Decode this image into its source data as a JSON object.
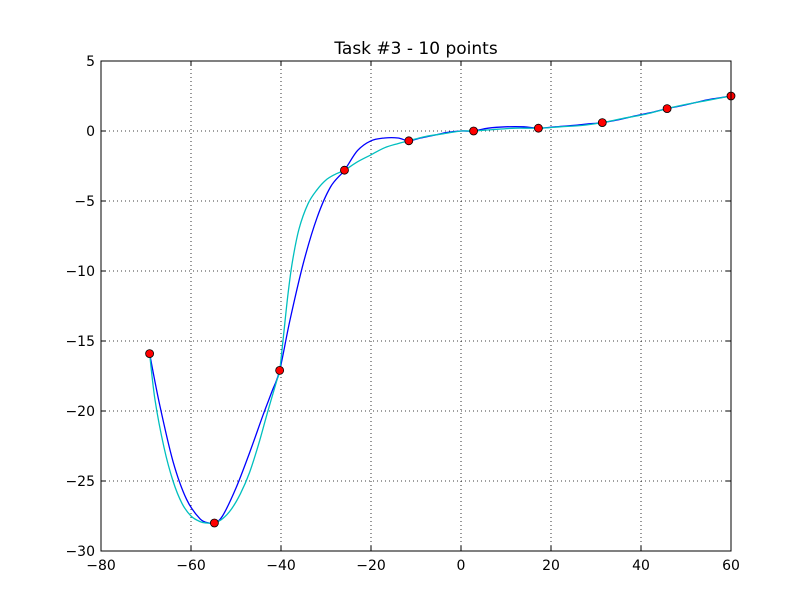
{
  "chart_data": {
    "type": "line",
    "title": "Task #3 - 10 points",
    "xlabel": "",
    "ylabel": "",
    "xlim": [
      -80,
      60
    ],
    "ylim": [
      -30,
      5
    ],
    "xticks": [
      -80,
      -60,
      -40,
      -20,
      0,
      20,
      40,
      60
    ],
    "yticks": [
      -30,
      -25,
      -20,
      -15,
      -10,
      -5,
      0,
      5
    ],
    "xtick_labels": [
      "−80",
      "−60",
      "−40",
      "−20",
      "0",
      "20",
      "40",
      "60"
    ],
    "ytick_labels": [
      "−30",
      "−25",
      "−20",
      "−15",
      "−10",
      "−5",
      "0",
      "5"
    ],
    "grid": true,
    "points": {
      "color": "#ff0000",
      "x": [
        -69.2,
        -54.8,
        -40.3,
        -25.9,
        -11.6,
        2.8,
        17.2,
        31.4,
        45.8,
        60.0
      ],
      "y": [
        -15.9,
        -28.0,
        -17.1,
        -2.8,
        -0.7,
        0.0,
        0.2,
        0.6,
        1.6,
        2.5
      ]
    },
    "series": [
      {
        "color": "#0000ff",
        "x": [
          -69.2,
          -67,
          -64,
          -61,
          -58,
          -56,
          -54.8,
          -53,
          -50,
          -47,
          -44,
          -42,
          -40.3,
          -38,
          -35,
          -32,
          -29,
          -25.9,
          -23,
          -20,
          -17,
          -14,
          -11.6,
          -9,
          -6,
          -3,
          0,
          2.8,
          6,
          10,
          14,
          17.2,
          21,
          25,
          28,
          31.4,
          35,
          39,
          42,
          45.8,
          49,
          53,
          56,
          60
        ],
        "y": [
          -15.9,
          -19.5,
          -23.6,
          -26.3,
          -27.7,
          -28.0,
          -28.0,
          -27.5,
          -25.5,
          -23.0,
          -20.3,
          -18.6,
          -17.1,
          -13.5,
          -9.4,
          -6.2,
          -4.0,
          -2.8,
          -1.4,
          -0.7,
          -0.5,
          -0.5,
          -0.7,
          -0.5,
          -0.3,
          -0.1,
          0.0,
          0.0,
          0.2,
          0.3,
          0.3,
          0.2,
          0.3,
          0.4,
          0.5,
          0.6,
          0.8,
          1.1,
          1.3,
          1.6,
          1.8,
          2.1,
          2.3,
          2.5
        ]
      },
      {
        "color": "#00bfbf",
        "x": [
          -69.2,
          -68,
          -66,
          -64,
          -62,
          -60,
          -58,
          -56.5,
          -54.8,
          -53,
          -51,
          -49,
          -47,
          -45,
          -43,
          -41,
          -40.3,
          -39.5,
          -38.5,
          -37.5,
          -36,
          -34,
          -32,
          -30,
          -28,
          -25.9,
          -23,
          -20,
          -17,
          -14,
          -11.6,
          -8,
          -4,
          0,
          2.8,
          7,
          12,
          17.2,
          22,
          27,
          31.4,
          36,
          41,
          45.8,
          50,
          55,
          60
        ],
        "y": [
          -15.9,
          -19.2,
          -22.6,
          -25.0,
          -26.6,
          -27.5,
          -27.9,
          -28.0,
          -28.0,
          -27.7,
          -27.0,
          -25.9,
          -24.4,
          -22.4,
          -20.1,
          -17.9,
          -17.1,
          -14.8,
          -11.8,
          -9.4,
          -7.0,
          -5.2,
          -4.2,
          -3.5,
          -3.1,
          -2.8,
          -2.2,
          -1.7,
          -1.2,
          -0.9,
          -0.7,
          -0.4,
          -0.2,
          0.0,
          0.0,
          0.1,
          0.2,
          0.2,
          0.3,
          0.4,
          0.6,
          0.9,
          1.2,
          1.6,
          1.9,
          2.2,
          2.5
        ]
      }
    ]
  }
}
